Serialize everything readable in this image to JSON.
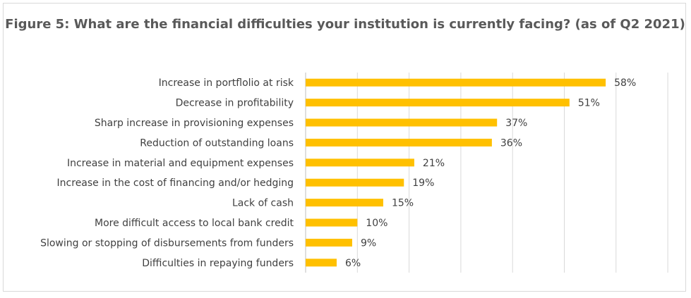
{
  "chart_data": {
    "type": "bar",
    "orientation": "horizontal",
    "title": "Figure 5: What are the financial difficulties your institution is currently facing? (as of Q2 2021)",
    "categories": [
      "Increase in portflolio at risk",
      "Decrease in profitability",
      "Sharp increase in provisioning expenses",
      "Reduction of outstanding loans",
      "Increase in material and equipment expenses",
      "Increase in the cost of financing and/or hedging",
      "Lack of cash",
      "More difficult access to local bank credit",
      "Slowing or stopping of disbursements from funders",
      "Difficulties in repaying funders"
    ],
    "values": [
      58,
      51,
      37,
      36,
      21,
      19,
      15,
      10,
      9,
      6
    ],
    "value_labels": [
      "58%",
      "51%",
      "37%",
      "36%",
      "21%",
      "19%",
      "15%",
      "10%",
      "9%",
      "6%"
    ],
    "xlim": [
      0,
      70
    ],
    "grid": true,
    "bar_color": "#FFC000"
  }
}
